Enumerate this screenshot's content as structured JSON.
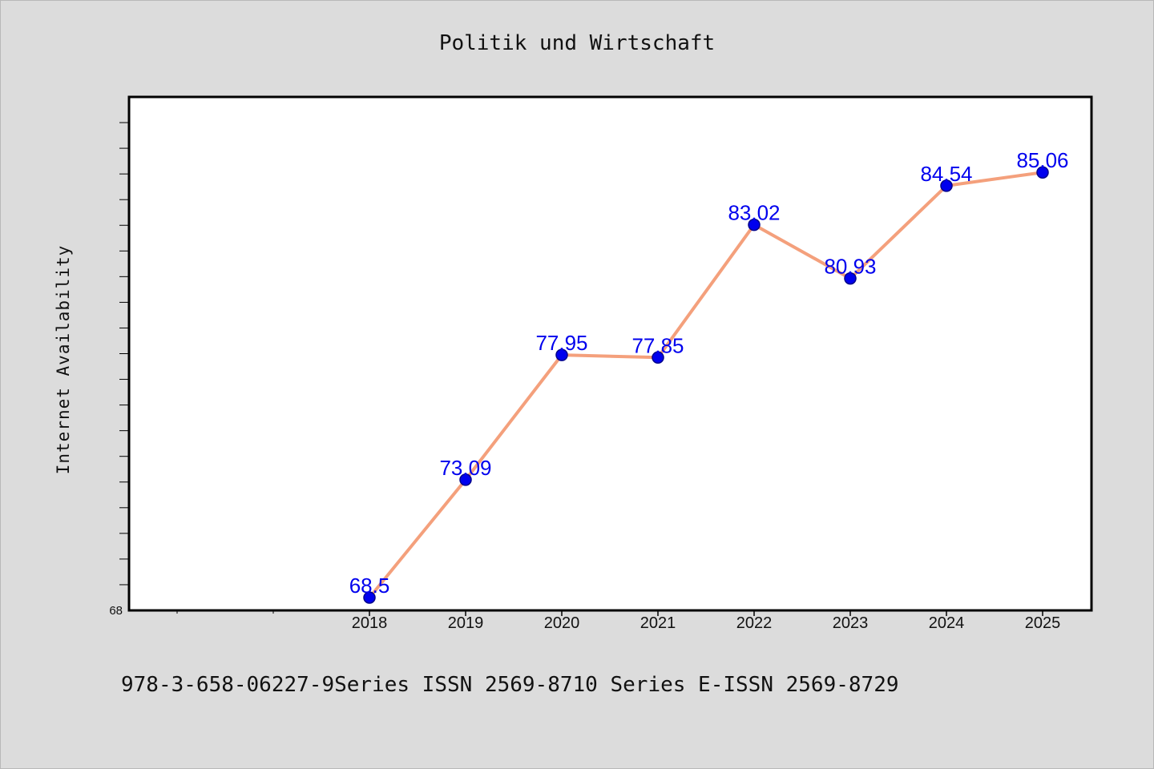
{
  "footer": {
    "text": "978-3-658-06227-9Series ISSN 2569-8710 Series E-ISSN 2569-8729"
  },
  "chart_data": {
    "type": "line",
    "title": "Politik und Wirtschaft",
    "xlabel": "",
    "ylabel": "Internet Availability",
    "categories": [
      "2018",
      "2019",
      "2020",
      "2021",
      "2022",
      "2023",
      "2024",
      "2025"
    ],
    "series": [
      {
        "values": [
          68.5,
          73.09,
          77.95,
          77.85,
          83.02,
          80.93,
          84.54,
          85.06
        ],
        "labels": [
          "68.5",
          "73.09",
          "77.95",
          "77.85",
          "83.02",
          "80.93",
          "84.54",
          "85.06"
        ]
      }
    ],
    "ylim": [
      68,
      88
    ],
    "y_tick_labels": [
      "68"
    ],
    "grid": false,
    "legend": "none",
    "colors": {
      "line": "#f4a07c",
      "marker": "#0000ee",
      "marker_edge": "#00008b",
      "data_label": "#0000ee",
      "plot_background": "#ffffff",
      "page_background": "#dcdcdc"
    }
  }
}
